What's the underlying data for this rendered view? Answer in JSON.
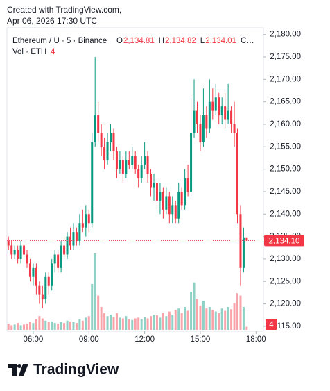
{
  "header": {
    "line1": "Created with TradingView.com,",
    "line2": "Apr 06, 2026 17:30 UTC"
  },
  "chart_data": {
    "type": "candlestick",
    "legend": {
      "symbol": "Ethereum / U · 5 · Binance",
      "ohlc": [
        {
          "key": "O",
          "value": "2,134.81"
        },
        {
          "key": "H",
          "value": "2,134.82"
        },
        {
          "key": "L",
          "value": "2,134.01"
        },
        {
          "key": "C…",
          "value": ""
        }
      ],
      "volume_title": "Vol · ETH"
    },
    "x": [
      280,
      290,
      300,
      310,
      320,
      330,
      340,
      350,
      360,
      370,
      380,
      390,
      400,
      410,
      420,
      430,
      440,
      450,
      460,
      470,
      480,
      490,
      500,
      510,
      520,
      530,
      540,
      550,
      560,
      570,
      580,
      590,
      600,
      610,
      620,
      630,
      640,
      650,
      660,
      670,
      680,
      690,
      700,
      710,
      720,
      730,
      740,
      750,
      760,
      770,
      780,
      790,
      800,
      810,
      820,
      830,
      840,
      850,
      860,
      870,
      880,
      890,
      900,
      910,
      920,
      930,
      940,
      950,
      960,
      970,
      980,
      990,
      1000,
      1010,
      1020,
      1030,
      1040,
      1050
    ],
    "open": [
      2134,
      2133,
      2131,
      2132,
      2130,
      2133,
      2131,
      2129,
      2126,
      2128,
      2124,
      2122,
      2121,
      2126,
      2124,
      2129,
      2131,
      2128,
      2133,
      2131,
      2135,
      2133,
      2136,
      2134,
      2138,
      2137,
      2140,
      2138,
      2156,
      2162,
      2158,
      2155,
      2152,
      2156,
      2158,
      2154,
      2150,
      2152,
      2149,
      2152,
      2151,
      2153,
      2150,
      2148,
      2151,
      2153,
      2149,
      2146,
      2147,
      2143,
      2145,
      2141,
      2144,
      2140,
      2142,
      2139,
      2145,
      2142,
      2148,
      2145,
      2158,
      2163,
      2160,
      2156,
      2162,
      2159,
      2165,
      2163,
      2166,
      2162,
      2164,
      2161,
      2163,
      2160,
      2158,
      2140,
      2128,
      2134.81
    ],
    "high": [
      2135,
      2134,
      2133,
      2133,
      2134,
      2134,
      2132,
      2130,
      2129,
      2129,
      2125,
      2124,
      2127,
      2127,
      2130,
      2132,
      2132,
      2134,
      2135,
      2136,
      2137,
      2138,
      2137,
      2140,
      2141,
      2142,
      2141,
      2158,
      2175,
      2165,
      2160,
      2157,
      2158,
      2160,
      2159,
      2155,
      2154,
      2153,
      2154,
      2154,
      2155,
      2154,
      2151,
      2153,
      2156,
      2154,
      2150,
      2149,
      2148,
      2147,
      2146,
      2146,
      2145,
      2144,
      2143,
      2147,
      2146,
      2150,
      2151,
      2166,
      2170,
      2165,
      2162,
      2168,
      2164,
      2170,
      2168,
      2169,
      2167,
      2166,
      2167,
      2169,
      2164,
      2165,
      2159,
      2142,
      2137,
      2134.82
    ],
    "low": [
      2132,
      2130,
      2130,
      2129,
      2129,
      2130,
      2128,
      2125,
      2124,
      2122,
      2120,
      2119,
      2120,
      2122,
      2123,
      2127,
      2127,
      2127,
      2130,
      2130,
      2132,
      2132,
      2133,
      2133,
      2136,
      2135,
      2136,
      2137,
      2155,
      2156,
      2153,
      2150,
      2151,
      2154,
      2152,
      2148,
      2149,
      2147,
      2148,
      2150,
      2150,
      2149,
      2146,
      2147,
      2150,
      2147,
      2144,
      2143,
      2141,
      2140,
      2139,
      2140,
      2138,
      2138,
      2138,
      2138,
      2141,
      2141,
      2144,
      2144,
      2157,
      2158,
      2154,
      2155,
      2157,
      2158,
      2161,
      2162,
      2160,
      2160,
      2159,
      2160,
      2158,
      2155,
      2138,
      2124,
      2127,
      2134.01
    ],
    "close": [
      2133,
      2131,
      2132,
      2130,
      2133,
      2131,
      2129,
      2126,
      2128,
      2124,
      2122,
      2121,
      2126,
      2124,
      2129,
      2131,
      2128,
      2133,
      2131,
      2135,
      2133,
      2136,
      2134,
      2138,
      2137,
      2140,
      2138,
      2156,
      2162,
      2158,
      2155,
      2152,
      2156,
      2158,
      2154,
      2150,
      2152,
      2149,
      2152,
      2151,
      2153,
      2150,
      2148,
      2151,
      2153,
      2149,
      2146,
      2147,
      2143,
      2145,
      2141,
      2144,
      2140,
      2142,
      2139,
      2145,
      2142,
      2148,
      2145,
      2158,
      2163,
      2160,
      2156,
      2162,
      2159,
      2165,
      2163,
      2166,
      2162,
      2164,
      2161,
      2163,
      2160,
      2158,
      2140,
      2128,
      2134.81,
      2134.1
    ],
    "volume": [
      8,
      6,
      7,
      9,
      6,
      7,
      8,
      10,
      9,
      14,
      18,
      15,
      12,
      10,
      11,
      9,
      8,
      10,
      9,
      12,
      11,
      10,
      9,
      14,
      12,
      16,
      18,
      60,
      100,
      45,
      30,
      22,
      18,
      20,
      17,
      22,
      16,
      15,
      18,
      14,
      13,
      15,
      16,
      14,
      17,
      15,
      18,
      20,
      19,
      16,
      22,
      18,
      24,
      20,
      26,
      28,
      22,
      30,
      25,
      50,
      62,
      40,
      32,
      38,
      28,
      30,
      26,
      24,
      22,
      28,
      25,
      30,
      27,
      35,
      48,
      45,
      30,
      4
    ],
    "last_label": "2,134.10",
    "up_color": "#089981",
    "down_color": "#f23645",
    "xlim": [
      275,
      1104
    ],
    "ylim": [
      2113.9,
      2181.5
    ],
    "xticks": [
      {
        "value": 360,
        "label": "06:00"
      },
      {
        "value": 540,
        "label": "09:00"
      },
      {
        "value": 720,
        "label": "12:00"
      },
      {
        "value": 900,
        "label": "15:00"
      },
      {
        "value": 1080,
        "label": "18:00"
      }
    ],
    "yticks": [
      {
        "value": 2115,
        "label": "2,115.00"
      },
      {
        "value": 2120,
        "label": "2,120.00"
      },
      {
        "value": 2125,
        "label": "2,125.00"
      },
      {
        "value": 2130,
        "label": "2,130.00"
      },
      {
        "value": 2135,
        "label": "2,135.00"
      },
      {
        "value": 2140,
        "label": "2,140.00"
      },
      {
        "value": 2145,
        "label": "2,145.00"
      },
      {
        "value": 2150,
        "label": "2,150.00"
      },
      {
        "value": 2155,
        "label": "2,155.00"
      },
      {
        "value": 2160,
        "label": "2,160.00"
      },
      {
        "value": 2165,
        "label": "2,165.00"
      },
      {
        "value": 2170,
        "label": "2,170.00"
      },
      {
        "value": 2175,
        "label": "2,175.00"
      },
      {
        "value": 2180,
        "label": "2,180.00"
      }
    ]
  },
  "footer": {
    "brand": "TradingView"
  }
}
